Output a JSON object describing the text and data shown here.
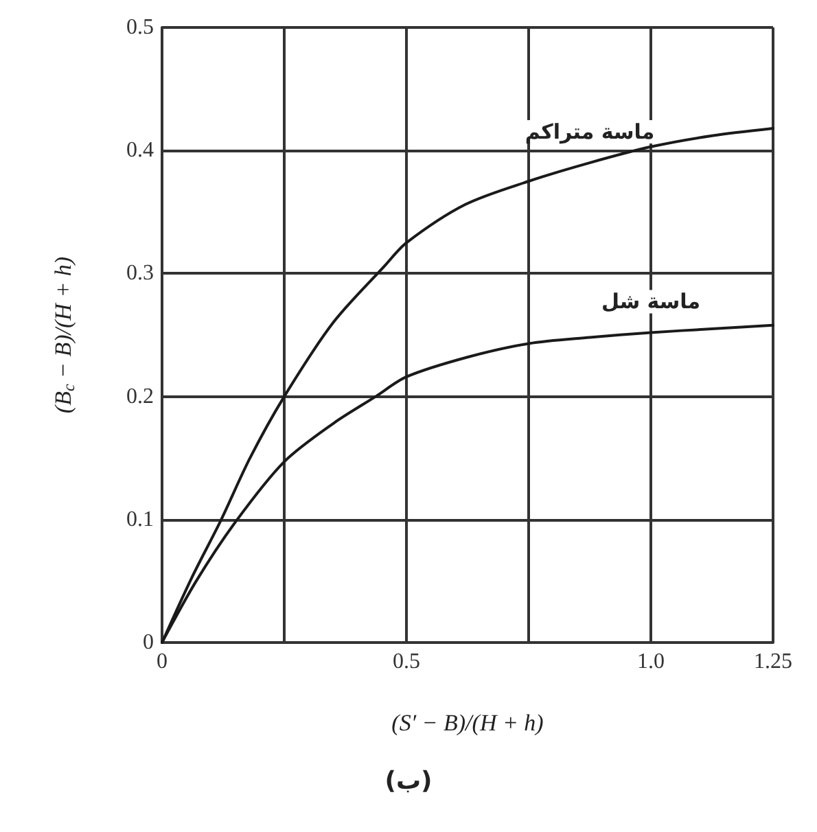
{
  "chart_data": {
    "type": "line",
    "xlabel": "(S′ − B)/(H + h)",
    "ylabel": "(B$_{c}$ − B)/(H + h)",
    "annotations": [
      "(ب)"
    ],
    "series": [
      {
        "name": "ماسة متراكم",
        "color": "#1a1a1a",
        "x": [
          0,
          0.06,
          0.12,
          0.18,
          0.25,
          0.35,
          0.455,
          0.5,
          0.62,
          0.75,
          0.875,
          1.0,
          1.125,
          1.25
        ],
        "values": [
          0,
          0.052,
          0.099,
          0.15,
          0.2,
          0.26,
          0.306,
          0.325,
          0.356,
          0.375,
          0.39,
          0.403,
          0.412,
          0.418
        ]
      },
      {
        "name": "ماسة شل",
        "color": "#1a1a1a",
        "x": [
          0,
          0.07,
          0.152,
          0.25,
          0.35,
          0.437,
          0.5,
          0.625,
          0.75,
          0.875,
          1.0,
          1.125,
          1.25
        ],
        "values": [
          0,
          0.05,
          0.099,
          0.147,
          0.178,
          0.2,
          0.216,
          0.232,
          0.243,
          0.248,
          0.252,
          0.255,
          0.258
        ]
      }
    ],
    "xlim": [
      0,
      1.25
    ],
    "xticks": [
      0,
      {
        "value": 0.25,
        "label": null
      },
      0.5,
      {
        "value": 0.75,
        "label": null
      },
      {
        "value": 1,
        "label": "1.0"
      },
      1.25
    ],
    "ylim": [
      0,
      0.5
    ],
    "yticks": [
      0,
      0.1,
      0.2,
      0.3,
      0.4,
      0.5
    ],
    "grid": true,
    "marker": "none",
    "line_style": "solid"
  }
}
